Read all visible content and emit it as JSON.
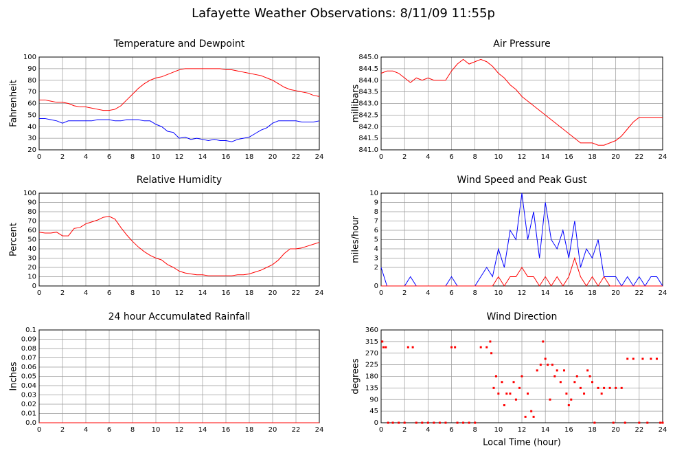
{
  "title": "Lafayette Weather Observations: 8/11/09 11:55p",
  "chart_data": [
    {
      "type": "line",
      "title": "Temperature and Dewpoint",
      "y_label": "Fahrenheit",
      "x": [
        0,
        0.5,
        1,
        1.5,
        2,
        2.5,
        3,
        3.5,
        4,
        4.5,
        5,
        5.5,
        6,
        6.5,
        7,
        7.5,
        8,
        8.5,
        9,
        9.5,
        10,
        10.5,
        11,
        11.5,
        12,
        12.5,
        13,
        13.5,
        14,
        14.5,
        15,
        15.5,
        16,
        16.5,
        17,
        17.5,
        18,
        18.5,
        19,
        19.5,
        20,
        20.5,
        21,
        21.5,
        22,
        22.5,
        23,
        23.5,
        24
      ],
      "series": [
        {
          "color": "#ff0000",
          "values": [
            63,
            63,
            62,
            61,
            61,
            60,
            58,
            57,
            57,
            56,
            55,
            54,
            54,
            55,
            58,
            63,
            68,
            73,
            77,
            80,
            82,
            83,
            85,
            87,
            89,
            90,
            90,
            90,
            90,
            90,
            90,
            90,
            89,
            89,
            88,
            87,
            86,
            85,
            84,
            82,
            80,
            77,
            74,
            72,
            71,
            70,
            69,
            67,
            66
          ]
        },
        {
          "color": "#0000ff",
          "values": [
            47,
            47,
            46,
            45,
            43,
            45,
            45,
            45,
            45,
            45,
            46,
            46,
            46,
            45,
            45,
            46,
            46,
            46,
            45,
            45,
            42,
            40,
            36,
            35,
            30,
            31,
            29,
            30,
            29,
            28,
            29,
            28,
            28,
            27,
            29,
            30,
            31,
            34,
            37,
            39,
            43,
            45,
            45,
            45,
            45,
            44,
            44,
            44,
            45
          ]
        }
      ],
      "xlim": [
        0,
        24
      ],
      "xticks": [
        0,
        2,
        4,
        6,
        8,
        10,
        12,
        14,
        16,
        18,
        20,
        22,
        24
      ],
      "ylim": [
        20,
        100
      ],
      "yticks": [
        20,
        30,
        40,
        50,
        60,
        70,
        80,
        90,
        100
      ],
      "grid": true
    },
    {
      "type": "line",
      "title": "Air Pressure",
      "y_label": "millibars",
      "x": [
        0,
        0.5,
        1,
        1.5,
        2,
        2.5,
        3,
        3.5,
        4,
        4.5,
        5,
        5.5,
        6,
        6.5,
        7,
        7.5,
        8,
        8.5,
        9,
        9.5,
        10,
        10.5,
        11,
        11.5,
        12,
        12.5,
        13,
        13.5,
        14,
        14.5,
        15,
        15.5,
        16,
        16.5,
        17,
        17.5,
        18,
        18.5,
        19,
        19.5,
        20,
        20.5,
        21,
        21.5,
        22,
        22.5,
        23,
        23.5,
        24
      ],
      "series": [
        {
          "color": "#ff0000",
          "values": [
            844.3,
            844.4,
            844.4,
            844.3,
            844.1,
            843.9,
            844.1,
            844.0,
            844.1,
            844.0,
            844.0,
            844.0,
            844.4,
            844.7,
            844.9,
            844.7,
            844.8,
            844.9,
            844.8,
            844.6,
            844.3,
            844.1,
            843.8,
            843.6,
            843.3,
            843.1,
            842.9,
            842.7,
            842.5,
            842.3,
            842.1,
            841.9,
            841.7,
            841.5,
            841.3,
            841.3,
            841.3,
            841.2,
            841.2,
            841.3,
            841.4,
            841.6,
            841.9,
            842.2,
            842.4,
            842.4,
            842.4,
            842.4,
            842.4
          ]
        }
      ],
      "xlim": [
        0,
        24
      ],
      "xticks": [
        0,
        2,
        4,
        6,
        8,
        10,
        12,
        14,
        16,
        18,
        20,
        22,
        24
      ],
      "ylim": [
        841,
        845
      ],
      "yticks": [
        {
          "value": 841,
          "label": "841.0"
        },
        841.5,
        {
          "value": 842,
          "label": "842.0"
        },
        842.5,
        {
          "value": 843,
          "label": "843.0"
        },
        843.5,
        {
          "value": 844,
          "label": "844.0"
        },
        844.5,
        {
          "value": 845,
          "label": "845.0"
        }
      ],
      "grid": true
    },
    {
      "type": "line",
      "title": "Relative Humidity",
      "y_label": "Percent",
      "x": [
        0,
        0.5,
        1,
        1.5,
        2,
        2.5,
        3,
        3.5,
        4,
        4.5,
        5,
        5.5,
        6,
        6.5,
        7,
        7.5,
        8,
        8.5,
        9,
        9.5,
        10,
        10.5,
        11,
        11.5,
        12,
        12.5,
        13,
        13.5,
        14,
        14.5,
        15,
        15.5,
        16,
        16.5,
        17,
        17.5,
        18,
        18.5,
        19,
        19.5,
        20,
        20.5,
        21,
        21.5,
        22,
        22.5,
        23,
        23.5,
        24
      ],
      "series": [
        {
          "color": "#ff0000",
          "values": [
            58,
            57,
            57,
            58,
            54,
            54,
            62,
            63,
            67,
            69,
            71,
            74,
            75,
            72,
            63,
            55,
            48,
            42,
            37,
            33,
            30,
            28,
            23,
            20,
            16,
            14,
            13,
            12,
            12,
            11,
            11,
            11,
            11,
            11,
            12,
            12,
            13,
            15,
            17,
            20,
            23,
            28,
            35,
            40,
            40,
            41,
            43,
            45,
            47
          ]
        }
      ],
      "xlim": [
        0,
        24
      ],
      "xticks": [
        0,
        2,
        4,
        6,
        8,
        10,
        12,
        14,
        16,
        18,
        20,
        22,
        24
      ],
      "ylim": [
        0,
        100
      ],
      "yticks": [
        0,
        10,
        20,
        30,
        40,
        50,
        60,
        70,
        80,
        90,
        100
      ],
      "grid": true
    },
    {
      "type": "line",
      "title": "Wind Speed and Peak Gust",
      "y_label": "miles/hour",
      "x": [
        0,
        0.5,
        1,
        1.5,
        2,
        2.5,
        3,
        3.5,
        4,
        4.5,
        5,
        5.5,
        6,
        6.5,
        7,
        7.5,
        8,
        8.5,
        9,
        9.5,
        10,
        10.5,
        11,
        11.5,
        12,
        12.5,
        13,
        13.5,
        14,
        14.5,
        15,
        15.5,
        16,
        16.5,
        17,
        17.5,
        18,
        18.5,
        19,
        19.5,
        20,
        20.5,
        21,
        21.5,
        22,
        22.5,
        23,
        23.5,
        24
      ],
      "series": [
        {
          "color": "#0000ff",
          "values": [
            2,
            0,
            0,
            0,
            0,
            1,
            0,
            0,
            0,
            0,
            0,
            0,
            1,
            0,
            0,
            0,
            0,
            1,
            2,
            1,
            4,
            2,
            6,
            5,
            10,
            5,
            8,
            3,
            9,
            5,
            4,
            6,
            3,
            7,
            2,
            4,
            3,
            5,
            1,
            1,
            1,
            0,
            1,
            0,
            1,
            0,
            1,
            1,
            0
          ]
        },
        {
          "color": "#ff0000",
          "values": [
            0,
            0,
            0,
            0,
            0,
            0,
            0,
            0,
            0,
            0,
            0,
            0,
            0,
            0,
            0,
            0,
            0,
            0,
            0,
            0,
            1,
            0,
            1,
            1,
            2,
            1,
            1,
            0,
            1,
            0,
            1,
            0,
            1,
            3,
            1,
            0,
            1,
            0,
            1,
            0,
            0,
            0,
            0,
            0,
            0,
            0,
            0,
            0,
            0
          ]
        }
      ],
      "xlim": [
        0,
        24
      ],
      "xticks": [
        0,
        2,
        4,
        6,
        8,
        10,
        12,
        14,
        16,
        18,
        20,
        22,
        24
      ],
      "ylim": [
        0,
        10
      ],
      "yticks": [
        0,
        2,
        3,
        4,
        5,
        6,
        7,
        8,
        9,
        10
      ],
      "grid": true
    },
    {
      "type": "line",
      "title": "24 hour Accumulated Rainfall",
      "y_label": "Inches",
      "x": [
        0,
        24
      ],
      "series": [
        {
          "color": "#ff0000",
          "values": [
            0,
            0
          ]
        }
      ],
      "xlim": [
        0,
        24
      ],
      "xticks": [
        0,
        2,
        4,
        6,
        8,
        10,
        12,
        14,
        16,
        18,
        20,
        22,
        24
      ],
      "ylim": [
        0,
        0.1
      ],
      "yticks": [
        {
          "value": 0,
          "label": "0.0"
        },
        0.01,
        0.02,
        0.03,
        0.04,
        0.05,
        0.06,
        0.07,
        0.08,
        0.09,
        0.1
      ],
      "grid": true
    },
    {
      "type": "scatter",
      "title": "Wind Direction",
      "y_label": "degrees",
      "x_label": "Local Time (hour)",
      "x": [
        0.1,
        0.2,
        0.4,
        0.6,
        1,
        1.5,
        2,
        2.3,
        2.7,
        3,
        3.5,
        4,
        4.5,
        5,
        5.5,
        6,
        6.3,
        6.5,
        7,
        7.5,
        8,
        8.5,
        9,
        9.3,
        9.4,
        9.6,
        9.8,
        10,
        10.3,
        10.5,
        10.7,
        11,
        11.3,
        11.5,
        11.8,
        12,
        12.3,
        12.5,
        12.8,
        13,
        13.3,
        13.6,
        13.8,
        14,
        14.2,
        14.4,
        14.6,
        14.8,
        15,
        15.3,
        15.6,
        15.8,
        16,
        16.2,
        16.5,
        16.7,
        17,
        17.3,
        17.6,
        17.8,
        18,
        18.2,
        18.5,
        18.8,
        19,
        19.5,
        19.8,
        20,
        20.5,
        20.8,
        21,
        21.5,
        22,
        22.3,
        22.7,
        23,
        23.5,
        23.8,
        24
      ],
      "series": [
        {
          "color": "#ff0000",
          "values": [
            315,
            293,
            293,
            0,
            0,
            0,
            0,
            293,
            293,
            0,
            0,
            0,
            0,
            0,
            0,
            293,
            293,
            0,
            0,
            0,
            0,
            293,
            293,
            315,
            270,
            135,
            180,
            113,
            158,
            68,
            113,
            113,
            158,
            90,
            135,
            180,
            23,
            113,
            45,
            23,
            203,
            225,
            315,
            248,
            225,
            90,
            225,
            180,
            203,
            158,
            203,
            113,
            68,
            90,
            158,
            180,
            135,
            113,
            203,
            180,
            158,
            0,
            135,
            113,
            135,
            135,
            0,
            135,
            135,
            0,
            248,
            248,
            0,
            248,
            0,
            248,
            248,
            0,
            0
          ]
        }
      ],
      "xlim": [
        0,
        24
      ],
      "xticks": [
        0,
        2,
        4,
        6,
        8,
        10,
        12,
        14,
        16,
        18,
        20,
        22,
        24
      ],
      "ylim": [
        0,
        360
      ],
      "yticks": [
        0,
        45,
        90,
        135,
        180,
        225,
        270,
        315,
        360
      ],
      "grid": true
    }
  ]
}
